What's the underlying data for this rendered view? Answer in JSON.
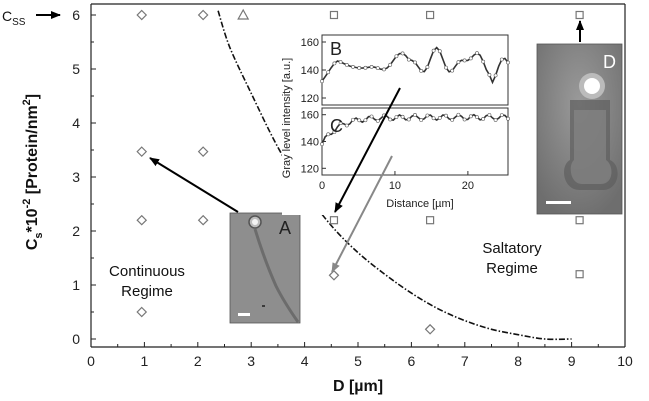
{
  "chart_data": {
    "type": "scatter",
    "xlabel": "D [µm]",
    "ylabel_main": "C",
    "ylabel_sub": "s",
    "ylabel_rest": "*10",
    "ylabel_exp": "-2",
    "ylabel_unit": " [Protein/nm",
    "ylabel_unit_exp": "2",
    "ylabel_close": "]",
    "xlim": [
      0,
      10
    ],
    "ylim": [
      -0.1,
      6.2
    ],
    "xticks": [
      "0",
      "1",
      "2",
      "3",
      "4",
      "5",
      "6",
      "7",
      "8",
      "9",
      "10"
    ],
    "yticks": [
      "0",
      "1",
      "2",
      "3",
      "4",
      "5",
      "6"
    ],
    "css_label_main": "C",
    "css_label_sub": "SS",
    "regime_continuous": [
      "Continuous",
      "Regime"
    ],
    "regime_saltatory": [
      "Saltatory",
      "Regime"
    ],
    "series": [
      {
        "marker": "diamond",
        "points": [
          [
            0.95,
            6.0
          ],
          [
            2.1,
            6.0
          ],
          [
            0.95,
            3.47
          ],
          [
            2.1,
            3.47
          ],
          [
            0.95,
            2.2
          ],
          [
            2.1,
            2.2
          ],
          [
            0.95,
            0.5
          ],
          [
            4.55,
            1.18
          ],
          [
            6.35,
            0.18
          ]
        ]
      },
      {
        "marker": "triangle",
        "points": [
          [
            2.85,
            6.0
          ]
        ]
      },
      {
        "marker": "square",
        "points": [
          [
            4.55,
            6.0
          ],
          [
            6.35,
            6.0
          ],
          [
            9.15,
            6.0
          ],
          [
            4.55,
            2.2
          ],
          [
            6.35,
            2.2
          ],
          [
            9.15,
            2.2
          ],
          [
            9.15,
            1.2
          ]
        ]
      }
    ],
    "boundary_curve": [
      [
        2.38,
        6.08
      ],
      [
        2.6,
        5.4
      ],
      [
        3.0,
        4.55
      ],
      [
        3.5,
        3.55
      ],
      [
        4.0,
        2.75
      ],
      [
        4.5,
        2.1
      ],
      [
        5.0,
        1.6
      ],
      [
        5.5,
        1.2
      ],
      [
        6.0,
        0.85
      ],
      [
        6.5,
        0.56
      ],
      [
        7.0,
        0.34
      ],
      [
        7.5,
        0.18
      ],
      [
        8.0,
        0.08
      ],
      [
        8.5,
        0.0
      ],
      [
        9.0,
        0.0
      ]
    ],
    "panel_labels": {
      "a": "A",
      "b": "B",
      "c": "C",
      "d": "D"
    },
    "inset": {
      "ylabel": "Gray level intensity [a.u.]",
      "xlabel": "Distance  [µm]",
      "xticks": [
        "0",
        "10",
        "20"
      ],
      "b_yticks": [
        "120",
        "140",
        "160"
      ],
      "c_yticks": [
        "120",
        "140",
        "160"
      ],
      "b_ylim": [
        115,
        165
      ],
      "c_ylim": [
        115,
        165
      ],
      "xlim": [
        0,
        25.5
      ]
    },
    "marker_color": "#777777"
  }
}
